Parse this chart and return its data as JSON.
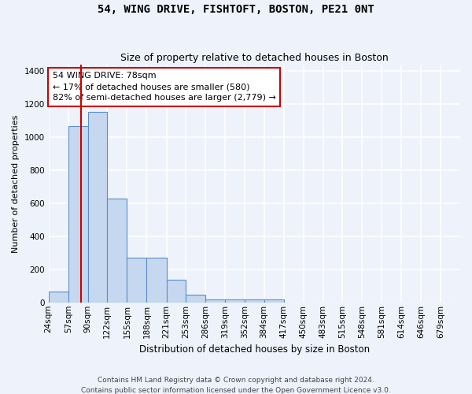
{
  "title": "54, WING DRIVE, FISHTOFT, BOSTON, PE21 0NT",
  "subtitle": "Size of property relative to detached houses in Boston",
  "xlabel": "Distribution of detached houses by size in Boston",
  "ylabel": "Number of detached properties",
  "footer_line1": "Contains HM Land Registry data © Crown copyright and database right 2024.",
  "footer_line2": "Contains public sector information licensed under the Open Government Licence v3.0.",
  "annotation_line1": "54 WING DRIVE: 78sqm",
  "annotation_line2": "← 17% of detached houses are smaller (580)",
  "annotation_line3": "82% of semi-detached houses are larger (2,779) →",
  "property_size": 78,
  "bin_labels": [
    "24sqm",
    "57sqm",
    "90sqm",
    "122sqm",
    "155sqm",
    "188sqm",
    "221sqm",
    "253sqm",
    "286sqm",
    "319sqm",
    "352sqm",
    "384sqm",
    "417sqm",
    "450sqm",
    "483sqm",
    "515sqm",
    "548sqm",
    "581sqm",
    "614sqm",
    "646sqm",
    "679sqm"
  ],
  "bin_edges": [
    24,
    57,
    90,
    122,
    155,
    188,
    221,
    253,
    286,
    319,
    352,
    384,
    417,
    450,
    483,
    515,
    548,
    581,
    614,
    646,
    679,
    712
  ],
  "bar_heights": [
    65,
    1070,
    1155,
    630,
    270,
    270,
    135,
    45,
    20,
    20,
    20,
    20,
    0,
    0,
    0,
    0,
    0,
    0,
    0,
    0,
    0
  ],
  "bar_color": "#c6d8f0",
  "bar_edge_color": "#5b8ec4",
  "vline_x": 78,
  "vline_color": "#cc0000",
  "annotation_box_edge_color": "#cc0000",
  "background_color": "#eef2fb",
  "grid_color": "#ffffff",
  "ylim": [
    0,
    1440
  ],
  "yticks": [
    0,
    200,
    400,
    600,
    800,
    1000,
    1200,
    1400
  ],
  "title_fontsize": 10,
  "subtitle_fontsize": 9,
  "ylabel_fontsize": 8,
  "xlabel_fontsize": 8.5,
  "tick_fontsize": 7.5,
  "annotation_fontsize": 8,
  "footer_fontsize": 6.5
}
